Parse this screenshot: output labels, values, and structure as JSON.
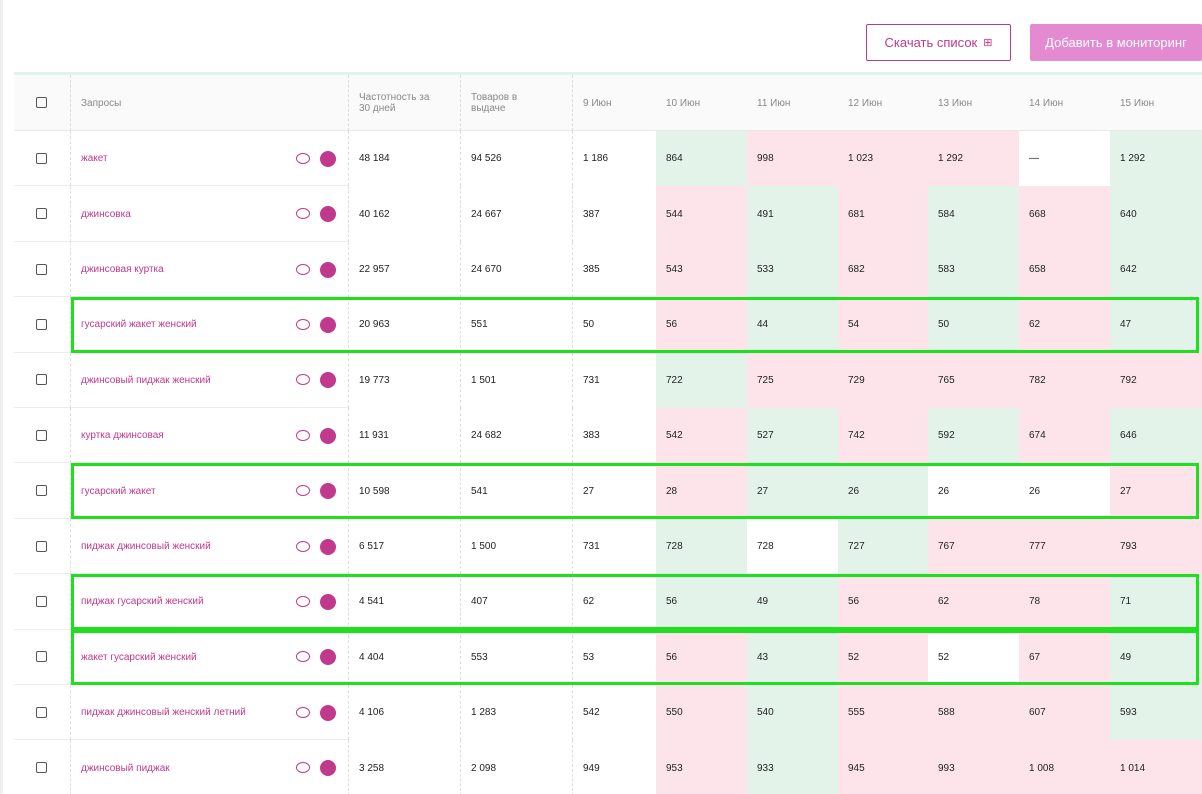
{
  "buttons": {
    "download": "Скачать список",
    "add": "Добавить в мониторинг"
  },
  "table": {
    "columns": [
      "Запросы",
      "Частотность за 30 дней",
      "Товаров в выдаче",
      "9 Июн",
      "10 Июн",
      "11 Июн",
      "12 Июн",
      "13 Июн",
      "14 Июн",
      "15 Июн"
    ],
    "rows": [
      {
        "query": "жакет",
        "cells": [
          "48 184",
          "94 526",
          "1 186",
          "864",
          "998",
          "1 023",
          "1 292",
          "—",
          "1 292"
        ],
        "highlighted": false
      },
      {
        "query": "джинсовка",
        "cells": [
          "40 162",
          "24 667",
          "387",
          "544",
          "491",
          "681",
          "584",
          "668",
          "640"
        ],
        "highlighted": false
      },
      {
        "query": "джинсовая куртка",
        "cells": [
          "22 957",
          "24 670",
          "385",
          "543",
          "533",
          "682",
          "583",
          "658",
          "642"
        ],
        "highlighted": false
      },
      {
        "query": "гусарский жакет женский",
        "cells": [
          "20 963",
          "551",
          "50",
          "56",
          "44",
          "54",
          "50",
          "62",
          "47"
        ],
        "highlighted": true
      },
      {
        "query": "джинсовый пиджак женский",
        "cells": [
          "19 773",
          "1 501",
          "731",
          "722",
          "725",
          "729",
          "765",
          "782",
          "792"
        ],
        "highlighted": false
      },
      {
        "query": "куртка джинсовая",
        "cells": [
          "11 931",
          "24 682",
          "383",
          "542",
          "527",
          "742",
          "592",
          "674",
          "646"
        ],
        "highlighted": false
      },
      {
        "query": "гусарский жакет",
        "cells": [
          "10 598",
          "541",
          "27",
          "28",
          "27",
          "26",
          "26",
          "26",
          "27"
        ],
        "highlighted": true
      },
      {
        "query": "пиджак джинсовый женский",
        "cells": [
          "6 517",
          "1 500",
          "731",
          "728",
          "728",
          "727",
          "767",
          "777",
          "793"
        ],
        "highlighted": false
      },
      {
        "query": "пиджак гусарский женский",
        "cells": [
          "4 541",
          "407",
          "62",
          "56",
          "49",
          "56",
          "62",
          "78",
          "71"
        ],
        "highlighted": true
      },
      {
        "query": "жакет гусарский женский",
        "cells": [
          "4 404",
          "553",
          "53",
          "56",
          "43",
          "52",
          "52",
          "67",
          "49"
        ],
        "highlighted": true
      },
      {
        "query": "пиджак джинсовый женский летний",
        "cells": [
          "4 106",
          "1 283",
          "542",
          "550",
          "540",
          "555",
          "588",
          "607",
          "593"
        ],
        "highlighted": false
      },
      {
        "query": "джинсовый пиджак",
        "cells": [
          "3 258",
          "2 098",
          "949",
          "953",
          "933",
          "945",
          "993",
          "1 008",
          "1 014"
        ],
        "highlighted": false
      }
    ]
  }
}
